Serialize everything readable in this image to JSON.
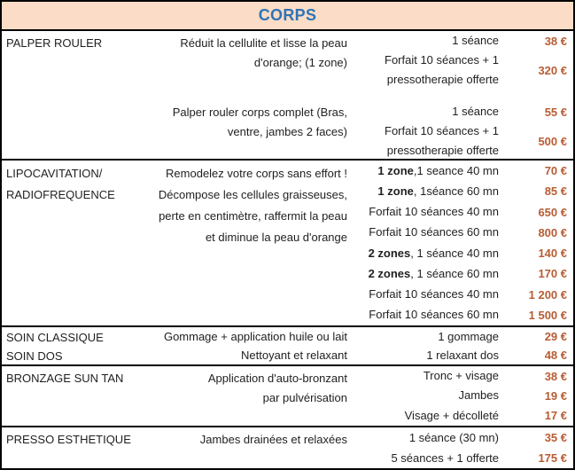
{
  "header": {
    "title": "CORPS"
  },
  "colors": {
    "header_bg": "#FBDCC7",
    "title": "#2E74B5",
    "price": "#B85C33",
    "text": "#1F1F1F",
    "border": "#000000"
  },
  "sections": [
    {
      "name": [
        "PALPER ROULER"
      ],
      "desc": [
        "Réduit la cellulite et lisse la peau",
        "d'orange; (1 zone)",
        "Palper rouler corps complet (Bras,",
        "ventre, jambes 2 faces)"
      ],
      "rows": [
        {
          "session": "1 séance",
          "price": "38 €"
        },
        {
          "session_lines": [
            "Forfait 10 séances + 1",
            "pressotherapie offerte"
          ],
          "price": "320 €"
        },
        {
          "session": "1 séance",
          "price": "55 €"
        },
        {
          "session_lines": [
            "Forfait 10 séances + 1",
            "pressotherapie offerte"
          ],
          "price": "500 €"
        }
      ]
    },
    {
      "name": [
        "LIPOCAVITATION/",
        "RADIOFREQUENCE"
      ],
      "desc": [
        "Remodelez votre corps sans effort !",
        "Décompose les cellules graisseuses,",
        "perte en centimètre, raffermit  la peau",
        "et diminue la peau d'orange"
      ],
      "rows": [
        {
          "bold": "1 zone",
          "rest": ",1 seance 40 mn",
          "price": "70 €"
        },
        {
          "bold": "1 zone",
          "rest": ", 1séance 60 mn",
          "price": "85 €"
        },
        {
          "session": "Forfait 10 séances 40 mn",
          "price": "650 €"
        },
        {
          "session": "Forfait 10 séances 60 mn",
          "price": "800 €"
        },
        {
          "bold": "2 zones",
          "rest": ", 1 séance 40 mn",
          "price": "140 €"
        },
        {
          "bold": "2 zones",
          "rest": ", 1 séance 60 mn",
          "price": "170 €"
        },
        {
          "session": "Forfait 10 séances 40 mn",
          "price": "1 200 €"
        },
        {
          "session": "Forfait 10 séances 60 mn",
          "price": "1 500 €"
        }
      ]
    },
    {
      "name": [
        "SOIN CLASSIQUE",
        "SOIN DOS"
      ],
      "rows": [
        {
          "desc": "Gommage + application huile ou lait",
          "session": "1 gommage",
          "price": "29 €"
        },
        {
          "desc": "Nettoyant et relaxant",
          "session": "1 relaxant dos",
          "price": "48 €"
        }
      ]
    },
    {
      "name": [
        "BRONZAGE SUN TAN"
      ],
      "desc": [
        "Application d'auto-bronzant",
        "par pulvérisation"
      ],
      "rows": [
        {
          "session": "Tronc + visage",
          "price": "38 €"
        },
        {
          "session": "Jambes",
          "price": "19 €"
        },
        {
          "session": "Visage + décolleté",
          "price": "17 €"
        }
      ]
    },
    {
      "name": [
        "PRESSO ESTHETIQUE"
      ],
      "desc": [
        "Jambes drainées et relaxées"
      ],
      "rows": [
        {
          "session": "1 séance (30 mn)",
          "price": "35 €"
        },
        {
          "session": "5 séances + 1 offerte",
          "price": "175 €"
        }
      ]
    }
  ]
}
